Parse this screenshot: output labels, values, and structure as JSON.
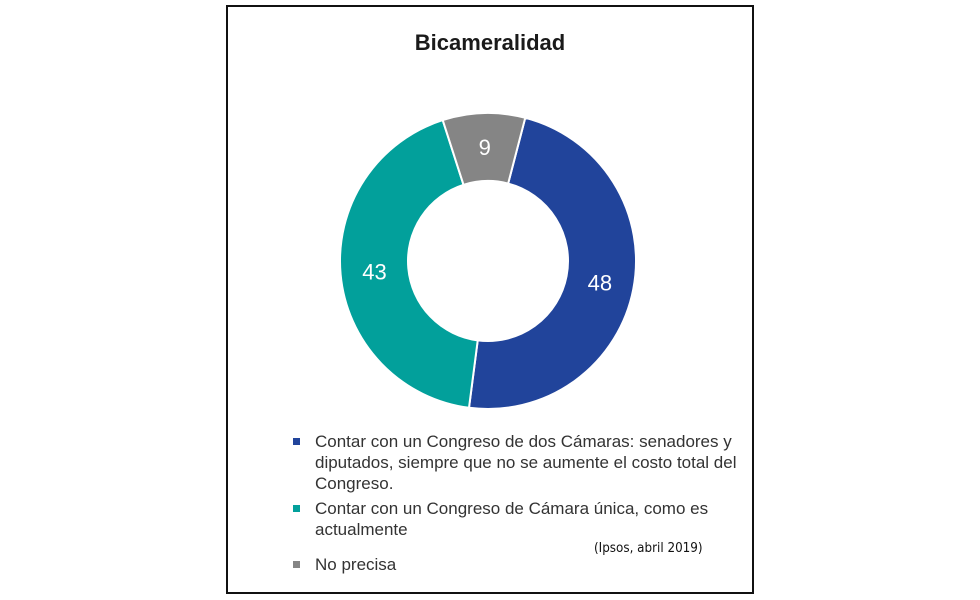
{
  "chart_data": {
    "type": "pie",
    "title": "Bicameralidad",
    "donut": true,
    "slices": [
      {
        "label": "Contar con un Congreso de dos Cámaras: senadores y diputados, siempre que no se aumente el costo total del Congreso.",
        "value": 48,
        "color": "#21449b"
      },
      {
        "label": "Contar con un Congreso de Cámara única, como es actualmente",
        "value": 43,
        "color": "#02a09b"
      },
      {
        "label": "No precisa",
        "value": 9,
        "color": "#858585"
      }
    ],
    "source": "(Ipsos, abril 2019)"
  }
}
